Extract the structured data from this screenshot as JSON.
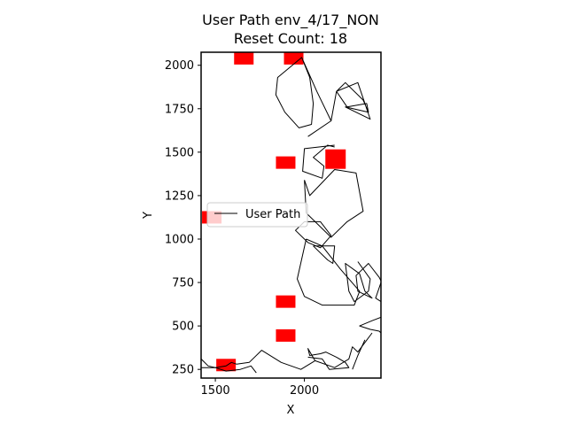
{
  "chart_data": {
    "type": "line",
    "title": "User Path env_4/17_NON",
    "subtitle": "Reset Count: 18",
    "xlabel": "X",
    "ylabel": "Y",
    "xlim": [
      1420,
      2430
    ],
    "ylim": [
      200,
      2075
    ],
    "xticks": [
      1500,
      2000
    ],
    "xtick_labels": [
      "1500",
      "2000"
    ],
    "yticks": [
      250,
      500,
      750,
      1000,
      1250,
      1500,
      1750,
      2000
    ],
    "ytick_labels": [
      "250",
      "500",
      "750",
      "1000",
      "1250",
      "1500",
      "1750",
      "2000"
    ],
    "grid": false,
    "legend": {
      "position": "center-left",
      "entries": [
        "User Path"
      ]
    },
    "series": [
      {
        "name": "User Path",
        "color": "#000000",
        "segments": [
          [
            [
              1985,
              2045
            ],
            [
              2030,
              1930
            ],
            [
              2050,
              1780
            ],
            [
              2040,
              1660
            ],
            [
              1970,
              1640
            ],
            [
              1890,
              1730
            ],
            [
              1840,
              1830
            ],
            [
              1850,
              1930
            ],
            [
              1985,
              2045
            ],
            [
              2070,
              1850
            ],
            [
              2150,
              1680
            ],
            [
              2020,
              1590
            ]
          ],
          [
            [
              2150,
              1680
            ],
            [
              2180,
              1850
            ],
            [
              2230,
              1900
            ],
            [
              2330,
              1800
            ],
            [
              2360,
              1730
            ],
            [
              2350,
              1780
            ],
            [
              2240,
              1760
            ],
            [
              2180,
              1850
            ],
            [
              2300,
              1900
            ],
            [
              2370,
              1690
            ],
            [
              2230,
              1760
            ],
            [
              2360,
              1730
            ]
          ],
          [
            [
              2170,
              1540
            ],
            [
              2000,
              1520
            ],
            [
              1990,
              1390
            ],
            [
              2100,
              1350
            ],
            [
              2110,
              1420
            ],
            [
              2050,
              1470
            ],
            [
              2130,
              1540
            ],
            [
              2170,
              1530
            ]
          ],
          [
            [
              2000,
              1340
            ],
            [
              2010,
              1150
            ],
            [
              2150,
              1010
            ],
            [
              2240,
              1100
            ],
            [
              2330,
              1160
            ],
            [
              2290,
              1380
            ],
            [
              2170,
              1400
            ],
            [
              2030,
              1250
            ],
            [
              2000,
              1340
            ]
          ],
          [
            [
              2000,
              1100
            ],
            [
              1950,
              1050
            ],
            [
              2020,
              980
            ],
            [
              2090,
              950
            ],
            [
              2150,
              1020
            ],
            [
              2090,
              1100
            ],
            [
              2000,
              1100
            ]
          ],
          [
            [
              2050,
              960
            ],
            [
              2130,
              880
            ],
            [
              2160,
              860
            ],
            [
              2170,
              960
            ],
            [
              2050,
              960
            ]
          ],
          [
            [
              2010,
              1000
            ],
            [
              1960,
              770
            ],
            [
              2000,
              670
            ],
            [
              2100,
              620
            ],
            [
              2280,
              620
            ],
            [
              2310,
              700
            ],
            [
              2200,
              830
            ],
            [
              2100,
              960
            ],
            [
              2010,
              1000
            ]
          ],
          [
            [
              2300,
              870
            ],
            [
              2370,
              770
            ],
            [
              2360,
              700
            ],
            [
              2280,
              640
            ],
            [
              2250,
              700
            ],
            [
              2230,
              860
            ],
            [
              2310,
              800
            ],
            [
              2340,
              700
            ],
            [
              2380,
              660
            ],
            [
              2300,
              700
            ],
            [
              2290,
              790
            ],
            [
              2360,
              860
            ],
            [
              2420,
              780
            ],
            [
              2430,
              760
            ]
          ],
          [
            [
              2430,
              750
            ],
            [
              2400,
              660
            ],
            [
              2430,
              640
            ]
          ],
          [
            [
              2430,
              550
            ],
            [
              2380,
              530
            ],
            [
              2310,
              500
            ],
            [
              2370,
              480
            ],
            [
              2420,
              470
            ],
            [
              2430,
              460
            ]
          ],
          [
            [
              2380,
              460
            ],
            [
              2300,
              350
            ],
            [
              2270,
              380
            ],
            [
              2250,
              310
            ],
            [
              2170,
              260
            ],
            [
              2060,
              300
            ],
            [
              2020,
              370
            ],
            [
              2030,
              330
            ],
            [
              2090,
              340
            ],
            [
              2120,
              350
            ],
            [
              2180,
              320
            ],
            [
              2230,
              290
            ],
            [
              2250,
              260
            ],
            [
              2140,
              250
            ],
            [
              2100,
              310
            ],
            [
              2020,
              320
            ]
          ],
          [
            [
              2340,
              420
            ],
            [
              2300,
              330
            ],
            [
              2270,
              250
            ]
          ],
          [
            [
              2060,
              300
            ],
            [
              1980,
              250
            ],
            [
              1870,
              290
            ],
            [
              1760,
              360
            ],
            [
              1690,
              290
            ],
            [
              1620,
              280
            ],
            [
              1590,
              290
            ],
            [
              1560,
              270
            ],
            [
              1500,
              260
            ],
            [
              1420,
              260
            ]
          ],
          [
            [
              1420,
              310
            ],
            [
              1460,
              270
            ],
            [
              1500,
              260
            ],
            [
              1560,
              240
            ],
            [
              1640,
              250
            ],
            [
              1700,
              270
            ],
            [
              1730,
              230
            ]
          ]
        ]
      }
    ],
    "obstacles": {
      "color": "#ff0000",
      "centers": [
        [
          1660,
          2040
        ],
        [
          1940,
          2040
        ],
        [
          1895,
          1440
        ],
        [
          2175,
          1460
        ],
        [
          1895,
          640
        ],
        [
          1895,
          445
        ],
        [
          1560,
          275
        ],
        [
          1480,
          1125
        ]
      ]
    }
  }
}
